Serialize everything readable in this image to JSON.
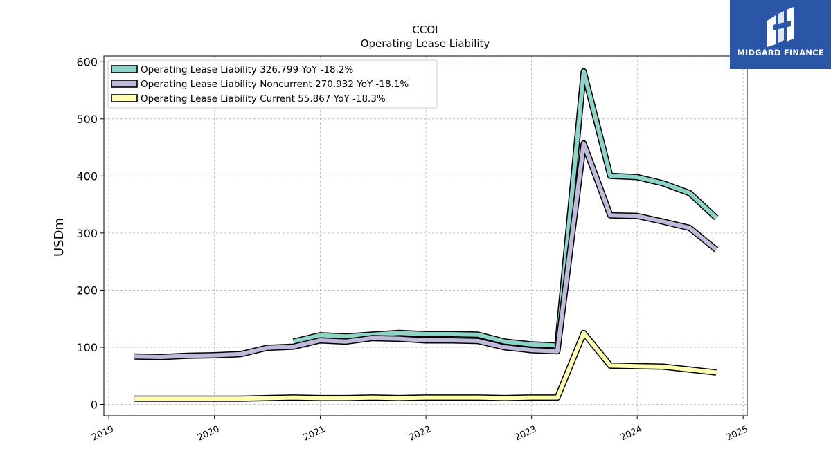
{
  "chart_data": {
    "type": "line",
    "title": "CCOI",
    "subtitle": "Operating Lease Liability",
    "ylabel": "USDm",
    "xlabel": "",
    "ylim": [
      -20,
      610
    ],
    "xlim": [
      "2018-12-15",
      "2025-01-15"
    ],
    "yticks": [
      0,
      100,
      200,
      300,
      400,
      500,
      600
    ],
    "xticks": [
      "2019",
      "2020",
      "2021",
      "2022",
      "2023",
      "2024",
      "2025"
    ],
    "grid": true,
    "legend_position": "top-left",
    "series": [
      {
        "name": "Operating Lease Liability",
        "legend_label": "Operating Lease Liability  326.799 YoY -18.2%",
        "color": "#8dd3c7",
        "points": [
          [
            "2020-09-30",
            110
          ],
          [
            "2020-12-31",
            121
          ],
          [
            "2021-03-31",
            119
          ],
          [
            "2021-06-30",
            122
          ],
          [
            "2021-09-30",
            125
          ],
          [
            "2021-12-31",
            123
          ],
          [
            "2022-03-31",
            123
          ],
          [
            "2022-06-30",
            122
          ],
          [
            "2022-09-30",
            110
          ],
          [
            "2022-12-31",
            105
          ],
          [
            "2023-03-31",
            103
          ],
          [
            "2023-06-30",
            583
          ],
          [
            "2023-09-30",
            400
          ],
          [
            "2023-12-31",
            398
          ],
          [
            "2024-03-31",
            387
          ],
          [
            "2024-06-30",
            370
          ],
          [
            "2024-09-30",
            326.799
          ]
        ]
      },
      {
        "name": "Operating Lease Liability Noncurrent",
        "legend_label": "Operating Lease Liability Noncurrent  270.932 YoY -18.1%",
        "color": "#bebada",
        "points": [
          [
            "2019-03-31",
            84
          ],
          [
            "2019-06-30",
            83
          ],
          [
            "2019-09-30",
            85
          ],
          [
            "2019-12-31",
            86
          ],
          [
            "2020-03-31",
            88
          ],
          [
            "2020-06-30",
            99
          ],
          [
            "2020-09-30",
            101
          ],
          [
            "2020-12-31",
            112
          ],
          [
            "2021-03-31",
            110
          ],
          [
            "2021-06-30",
            116
          ],
          [
            "2021-09-30",
            115
          ],
          [
            "2021-12-31",
            112
          ],
          [
            "2022-03-31",
            112
          ],
          [
            "2022-06-30",
            111
          ],
          [
            "2022-09-30",
            100
          ],
          [
            "2022-12-31",
            95
          ],
          [
            "2023-03-31",
            93
          ],
          [
            "2023-06-30",
            457
          ],
          [
            "2023-09-30",
            331
          ],
          [
            "2023-12-31",
            330
          ],
          [
            "2024-03-31",
            320
          ],
          [
            "2024-06-30",
            309
          ],
          [
            "2024-09-30",
            270.932
          ]
        ]
      },
      {
        "name": "Operating Lease Liability Current",
        "legend_label": "Operating Lease Liability Current  55.867 YoY -18.3%",
        "color": "#ffffb3",
        "points": [
          [
            "2019-03-31",
            10
          ],
          [
            "2019-06-30",
            10
          ],
          [
            "2019-09-30",
            10
          ],
          [
            "2019-12-31",
            10
          ],
          [
            "2020-03-31",
            10
          ],
          [
            "2020-06-30",
            11
          ],
          [
            "2020-09-30",
            12
          ],
          [
            "2020-12-31",
            11
          ],
          [
            "2021-03-31",
            11
          ],
          [
            "2021-06-30",
            12
          ],
          [
            "2021-09-30",
            11
          ],
          [
            "2021-12-31",
            12
          ],
          [
            "2022-03-31",
            12
          ],
          [
            "2022-06-30",
            12
          ],
          [
            "2022-09-30",
            11
          ],
          [
            "2022-12-31",
            12
          ],
          [
            "2023-03-31",
            12
          ],
          [
            "2023-06-30",
            125
          ],
          [
            "2023-09-30",
            68
          ],
          [
            "2023-12-31",
            67
          ],
          [
            "2024-03-31",
            66
          ],
          [
            "2024-06-30",
            61
          ],
          [
            "2024-09-30",
            55.867
          ]
        ]
      }
    ]
  },
  "logo": {
    "text": "MIDGARD FINANCE",
    "background": "#2b56a8"
  }
}
